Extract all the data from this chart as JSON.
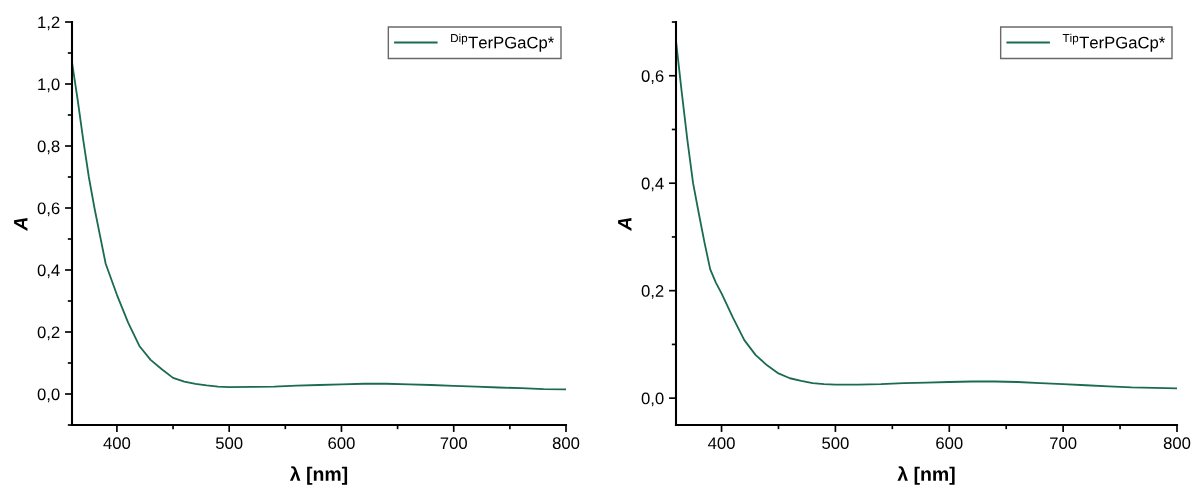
{
  "chart_data": [
    {
      "type": "line",
      "xlabel": "λ [nm]",
      "ylabel": "A",
      "xlim": [
        360,
        800
      ],
      "ylim": [
        -0.1,
        1.2
      ],
      "xticks": [
        400,
        500,
        600,
        700,
        800
      ],
      "yticks": [
        {
          "value": 0,
          "label": "0,0"
        },
        {
          "value": 0.2,
          "label": "0,2"
        },
        {
          "value": 0.4,
          "label": "0,4"
        },
        {
          "value": 0.6,
          "label": "0,6"
        },
        {
          "value": 0.8,
          "label": "0,8"
        },
        {
          "value": 1.0,
          "label": "1,0"
        },
        {
          "value": 1.2,
          "label": "1,2"
        }
      ],
      "legend": "top right",
      "grid": false,
      "x": [
        360,
        365,
        370,
        375,
        380,
        385,
        390,
        395,
        400,
        410,
        420,
        430,
        440,
        450,
        460,
        470,
        480,
        490,
        500,
        520,
        540,
        560,
        580,
        600,
        620,
        640,
        660,
        680,
        700,
        720,
        740,
        760,
        780,
        800
      ],
      "series": [
        {
          "name": "$^{Dip}$TerPGaCp*",
          "color": "#1a6b4f",
          "values": [
            1.07,
            0.95,
            0.82,
            0.7,
            0.6,
            0.51,
            0.42,
            0.37,
            0.32,
            0.23,
            0.155,
            0.11,
            0.08,
            0.052,
            0.04,
            0.033,
            0.028,
            0.024,
            0.022,
            0.023,
            0.024,
            0.027,
            0.029,
            0.031,
            0.033,
            0.033,
            0.031,
            0.029,
            0.026,
            0.024,
            0.021,
            0.019,
            0.016,
            0.015
          ]
        }
      ]
    },
    {
      "type": "line",
      "xlabel": "λ [nm]",
      "ylabel": "A",
      "xlim": [
        360,
        800
      ],
      "ylim": [
        -0.05,
        0.7
      ],
      "xticks": [
        400,
        500,
        600,
        700,
        800
      ],
      "yticks": [
        {
          "value": 0,
          "label": "0,0"
        },
        {
          "value": 0.2,
          "label": "0,2"
        },
        {
          "value": 0.4,
          "label": "0,4"
        },
        {
          "value": 0.6,
          "label": "0,6"
        }
      ],
      "legend": "top right",
      "grid": false,
      "x": [
        360,
        365,
        370,
        375,
        380,
        385,
        390,
        395,
        400,
        410,
        420,
        430,
        440,
        450,
        460,
        470,
        480,
        490,
        500,
        520,
        540,
        560,
        580,
        600,
        620,
        640,
        660,
        680,
        700,
        720,
        740,
        760,
        780,
        800
      ],
      "series": [
        {
          "name": "$^{Tip}$TerPGaCp*",
          "color": "#1a6b4f",
          "values": [
            0.665,
            0.57,
            0.48,
            0.4,
            0.344,
            0.29,
            0.24,
            0.215,
            0.195,
            0.15,
            0.108,
            0.08,
            0.061,
            0.046,
            0.037,
            0.032,
            0.028,
            0.026,
            0.025,
            0.025,
            0.026,
            0.028,
            0.029,
            0.03,
            0.031,
            0.031,
            0.03,
            0.028,
            0.026,
            0.024,
            0.022,
            0.02,
            0.019,
            0.018
          ]
        }
      ]
    }
  ]
}
